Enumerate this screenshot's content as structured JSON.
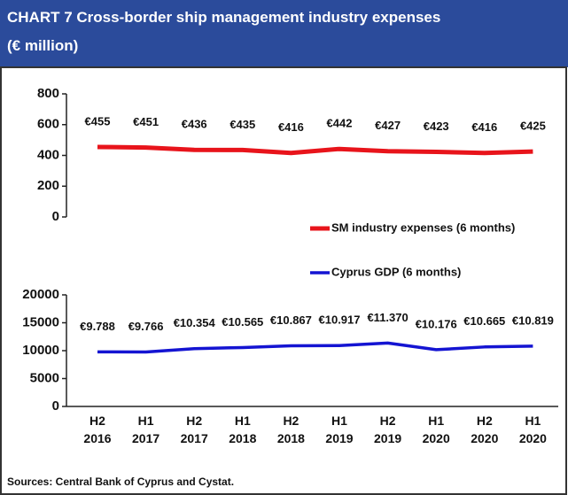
{
  "chart_data": [
    {
      "type": "line",
      "title": "CHART 7  Cross-border ship management industry expenses",
      "subtitle": "(€ million)",
      "ylim": [
        0,
        800
      ],
      "yticks": [
        0,
        200,
        400,
        600,
        800
      ],
      "series": [
        {
          "name": "SM industry expenses (6 months)",
          "color": "#e8141b",
          "values": [
            455,
            451,
            436,
            435,
            416,
            442,
            427,
            423,
            416,
            425
          ],
          "value_labels": [
            "€455",
            "€451",
            "€436",
            "€435",
            "€416",
            "€442",
            "€427",
            "€423",
            "€416",
            "€425"
          ]
        }
      ]
    },
    {
      "type": "line",
      "categories": [
        "H2 2016",
        "H1 2017",
        "H2 2017",
        "H1 2018",
        "H2 2018",
        "H1 2019",
        "H2 2019",
        "H1 2020",
        "H2 2020",
        "H1 2020"
      ],
      "ylim": [
        0,
        20000
      ],
      "yticks": [
        0,
        5000,
        10000,
        15000,
        20000
      ],
      "series": [
        {
          "name": "Cyprus GDP (6 months)",
          "color": "#1414d2",
          "values": [
            9788,
            9766,
            10354,
            10565,
            10867,
            10917,
            11370,
            10176,
            10665,
            10819
          ],
          "value_labels": [
            "€9.788",
            "€9.766",
            "€10.354",
            "€10.565",
            "€10.867",
            "€10.917",
            "€11.370",
            "€10.176",
            "€10.665",
            "€10.819"
          ]
        }
      ],
      "note": "Sources: Central Bank of Cyprus and Cystat."
    }
  ]
}
